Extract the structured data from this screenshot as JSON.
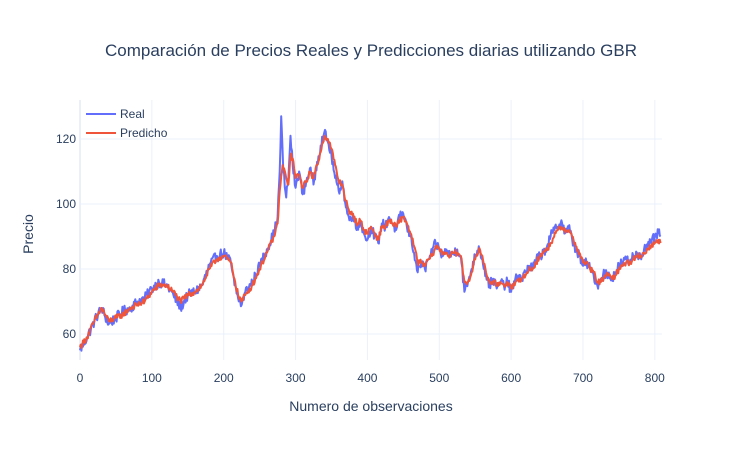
{
  "chart_data": {
    "type": "line",
    "title": "Comparación de Precios Reales y Predicciones diarias utilizando GBR",
    "xlabel": "Numero de observaciones",
    "ylabel": "Precio",
    "xlim": [
      0,
      810
    ],
    "ylim": [
      52,
      132
    ],
    "x_ticks": [
      0,
      100,
      200,
      300,
      400,
      500,
      600,
      700,
      800
    ],
    "y_ticks": [
      60,
      80,
      100,
      120
    ],
    "grid": true,
    "legend_position": "top-left",
    "series": [
      {
        "name": "Real",
        "color": "#636efa",
        "anchors": [
          [
            0,
            55
          ],
          [
            10,
            59
          ],
          [
            20,
            64
          ],
          [
            30,
            68
          ],
          [
            40,
            63
          ],
          [
            50,
            65
          ],
          [
            60,
            67
          ],
          [
            70,
            68
          ],
          [
            80,
            70
          ],
          [
            90,
            71
          ],
          [
            100,
            74
          ],
          [
            110,
            76
          ],
          [
            120,
            75
          ],
          [
            130,
            72
          ],
          [
            140,
            68
          ],
          [
            150,
            72
          ],
          [
            160,
            73
          ],
          [
            170,
            75
          ],
          [
            180,
            81
          ],
          [
            190,
            84
          ],
          [
            200,
            85
          ],
          [
            210,
            82
          ],
          [
            215,
            75
          ],
          [
            220,
            71
          ],
          [
            225,
            69
          ],
          [
            230,
            73
          ],
          [
            240,
            76
          ],
          [
            250,
            81
          ],
          [
            260,
            86
          ],
          [
            270,
            91
          ],
          [
            275,
            96
          ],
          [
            278,
            110
          ],
          [
            280,
            127
          ],
          [
            283,
            110
          ],
          [
            287,
            102
          ],
          [
            290,
            108
          ],
          [
            293,
            121
          ],
          [
            296,
            112
          ],
          [
            300,
            105
          ],
          [
            305,
            110
          ],
          [
            310,
            103
          ],
          [
            315,
            107
          ],
          [
            320,
            111
          ],
          [
            325,
            106
          ],
          [
            330,
            113
          ],
          [
            335,
            118
          ],
          [
            340,
            122
          ],
          [
            345,
            119
          ],
          [
            350,
            115
          ],
          [
            355,
            108
          ],
          [
            360,
            104
          ],
          [
            365,
            107
          ],
          [
            370,
            99
          ],
          [
            375,
            95
          ],
          [
            380,
            97
          ],
          [
            385,
            92
          ],
          [
            390,
            95
          ],
          [
            395,
            91
          ],
          [
            400,
            89
          ],
          [
            405,
            93
          ],
          [
            410,
            90
          ],
          [
            415,
            88
          ],
          [
            420,
            94
          ],
          [
            425,
            93
          ],
          [
            430,
            96
          ],
          [
            435,
            94
          ],
          [
            440,
            92
          ],
          [
            445,
            96
          ],
          [
            450,
            97
          ],
          [
            455,
            93
          ],
          [
            460,
            90
          ],
          [
            465,
            85
          ],
          [
            470,
            79
          ],
          [
            475,
            82
          ],
          [
            480,
            80
          ],
          [
            485,
            83
          ],
          [
            490,
            85
          ],
          [
            495,
            88
          ],
          [
            500,
            86
          ],
          [
            505,
            84
          ],
          [
            510,
            86
          ],
          [
            515,
            84
          ],
          [
            520,
            85
          ],
          [
            525,
            86
          ],
          [
            530,
            84
          ],
          [
            535,
            73
          ],
          [
            540,
            76
          ],
          [
            545,
            80
          ],
          [
            550,
            84
          ],
          [
            555,
            87
          ],
          [
            560,
            83
          ],
          [
            565,
            78
          ],
          [
            570,
            75
          ],
          [
            575,
            77
          ],
          [
            580,
            74
          ],
          [
            585,
            76
          ],
          [
            590,
            75
          ],
          [
            595,
            76
          ],
          [
            600,
            73
          ],
          [
            605,
            76
          ],
          [
            610,
            78
          ],
          [
            615,
            77
          ],
          [
            620,
            79
          ],
          [
            625,
            81
          ],
          [
            630,
            80
          ],
          [
            635,
            83
          ],
          [
            640,
            84
          ],
          [
            645,
            85
          ],
          [
            650,
            87
          ],
          [
            655,
            90
          ],
          [
            660,
            92
          ],
          [
            665,
            93
          ],
          [
            670,
            95
          ],
          [
            675,
            91
          ],
          [
            680,
            93
          ],
          [
            685,
            89
          ],
          [
            690,
            86
          ],
          [
            695,
            84
          ],
          [
            700,
            81
          ],
          [
            705,
            82
          ],
          [
            710,
            80
          ],
          [
            715,
            78
          ],
          [
            720,
            75
          ],
          [
            725,
            77
          ],
          [
            730,
            79
          ],
          [
            735,
            78
          ],
          [
            740,
            77
          ],
          [
            745,
            79
          ],
          [
            750,
            81
          ],
          [
            755,
            82
          ],
          [
            760,
            83
          ],
          [
            765,
            82
          ],
          [
            770,
            84
          ],
          [
            775,
            85
          ],
          [
            780,
            84
          ],
          [
            785,
            86
          ],
          [
            790,
            87
          ],
          [
            795,
            88
          ],
          [
            800,
            90
          ],
          [
            805,
            91
          ],
          [
            808,
            90
          ]
        ]
      },
      {
        "name": "Predicho",
        "color": "#ef553b",
        "anchors": [
          [
            0,
            56
          ],
          [
            10,
            59
          ],
          [
            20,
            64
          ],
          [
            30,
            68
          ],
          [
            40,
            64
          ],
          [
            50,
            65
          ],
          [
            60,
            66
          ],
          [
            70,
            68
          ],
          [
            80,
            69
          ],
          [
            90,
            70
          ],
          [
            100,
            73
          ],
          [
            110,
            75
          ],
          [
            120,
            75
          ],
          [
            130,
            73
          ],
          [
            140,
            70
          ],
          [
            150,
            72
          ],
          [
            160,
            73
          ],
          [
            170,
            75
          ],
          [
            180,
            80
          ],
          [
            190,
            83
          ],
          [
            200,
            84
          ],
          [
            210,
            82
          ],
          [
            215,
            77
          ],
          [
            220,
            72
          ],
          [
            225,
            70
          ],
          [
            230,
            72
          ],
          [
            240,
            75
          ],
          [
            250,
            80
          ],
          [
            260,
            85
          ],
          [
            270,
            90
          ],
          [
            275,
            94
          ],
          [
            278,
            104
          ],
          [
            282,
            112
          ],
          [
            287,
            108
          ],
          [
            290,
            106
          ],
          [
            293,
            115
          ],
          [
            296,
            114
          ],
          [
            300,
            108
          ],
          [
            305,
            109
          ],
          [
            310,
            105
          ],
          [
            315,
            107
          ],
          [
            320,
            110
          ],
          [
            325,
            108
          ],
          [
            330,
            112
          ],
          [
            335,
            116
          ],
          [
            340,
            121
          ],
          [
            345,
            120
          ],
          [
            350,
            117
          ],
          [
            355,
            112
          ],
          [
            360,
            107
          ],
          [
            365,
            106
          ],
          [
            370,
            101
          ],
          [
            375,
            97
          ],
          [
            380,
            97
          ],
          [
            385,
            94
          ],
          [
            390,
            95
          ],
          [
            395,
            92
          ],
          [
            400,
            91
          ],
          [
            405,
            93
          ],
          [
            410,
            91
          ],
          [
            415,
            89
          ],
          [
            420,
            93
          ],
          [
            425,
            93
          ],
          [
            430,
            95
          ],
          [
            435,
            94
          ],
          [
            440,
            93
          ],
          [
            445,
            95
          ],
          [
            450,
            96
          ],
          [
            455,
            94
          ],
          [
            460,
            91
          ],
          [
            465,
            87
          ],
          [
            470,
            82
          ],
          [
            475,
            82
          ],
          [
            480,
            81
          ],
          [
            485,
            83
          ],
          [
            490,
            84
          ],
          [
            495,
            87
          ],
          [
            500,
            86
          ],
          [
            505,
            85
          ],
          [
            510,
            85
          ],
          [
            515,
            84
          ],
          [
            520,
            85
          ],
          [
            525,
            85
          ],
          [
            530,
            84
          ],
          [
            535,
            76
          ],
          [
            540,
            76
          ],
          [
            545,
            79
          ],
          [
            550,
            83
          ],
          [
            555,
            86
          ],
          [
            560,
            84
          ],
          [
            565,
            79
          ],
          [
            570,
            76
          ],
          [
            575,
            76
          ],
          [
            580,
            75
          ],
          [
            585,
            76
          ],
          [
            590,
            75
          ],
          [
            595,
            76
          ],
          [
            600,
            74
          ],
          [
            605,
            75
          ],
          [
            610,
            77
          ],
          [
            615,
            77
          ],
          [
            620,
            78
          ],
          [
            625,
            80
          ],
          [
            630,
            80
          ],
          [
            635,
            82
          ],
          [
            640,
            84
          ],
          [
            645,
            85
          ],
          [
            650,
            86
          ],
          [
            655,
            88
          ],
          [
            660,
            90
          ],
          [
            665,
            92
          ],
          [
            670,
            93
          ],
          [
            675,
            92
          ],
          [
            680,
            92
          ],
          [
            685,
            90
          ],
          [
            690,
            87
          ],
          [
            695,
            85
          ],
          [
            700,
            82
          ],
          [
            705,
            82
          ],
          [
            710,
            80
          ],
          [
            715,
            79
          ],
          [
            720,
            76
          ],
          [
            725,
            76
          ],
          [
            730,
            78
          ],
          [
            735,
            78
          ],
          [
            740,
            77
          ],
          [
            745,
            78
          ],
          [
            750,
            80
          ],
          [
            755,
            81
          ],
          [
            760,
            82
          ],
          [
            765,
            82
          ],
          [
            770,
            83
          ],
          [
            775,
            84
          ],
          [
            780,
            84
          ],
          [
            785,
            85
          ],
          [
            790,
            86
          ],
          [
            795,
            87
          ],
          [
            800,
            88
          ],
          [
            805,
            89
          ],
          [
            808,
            88
          ]
        ]
      }
    ]
  }
}
